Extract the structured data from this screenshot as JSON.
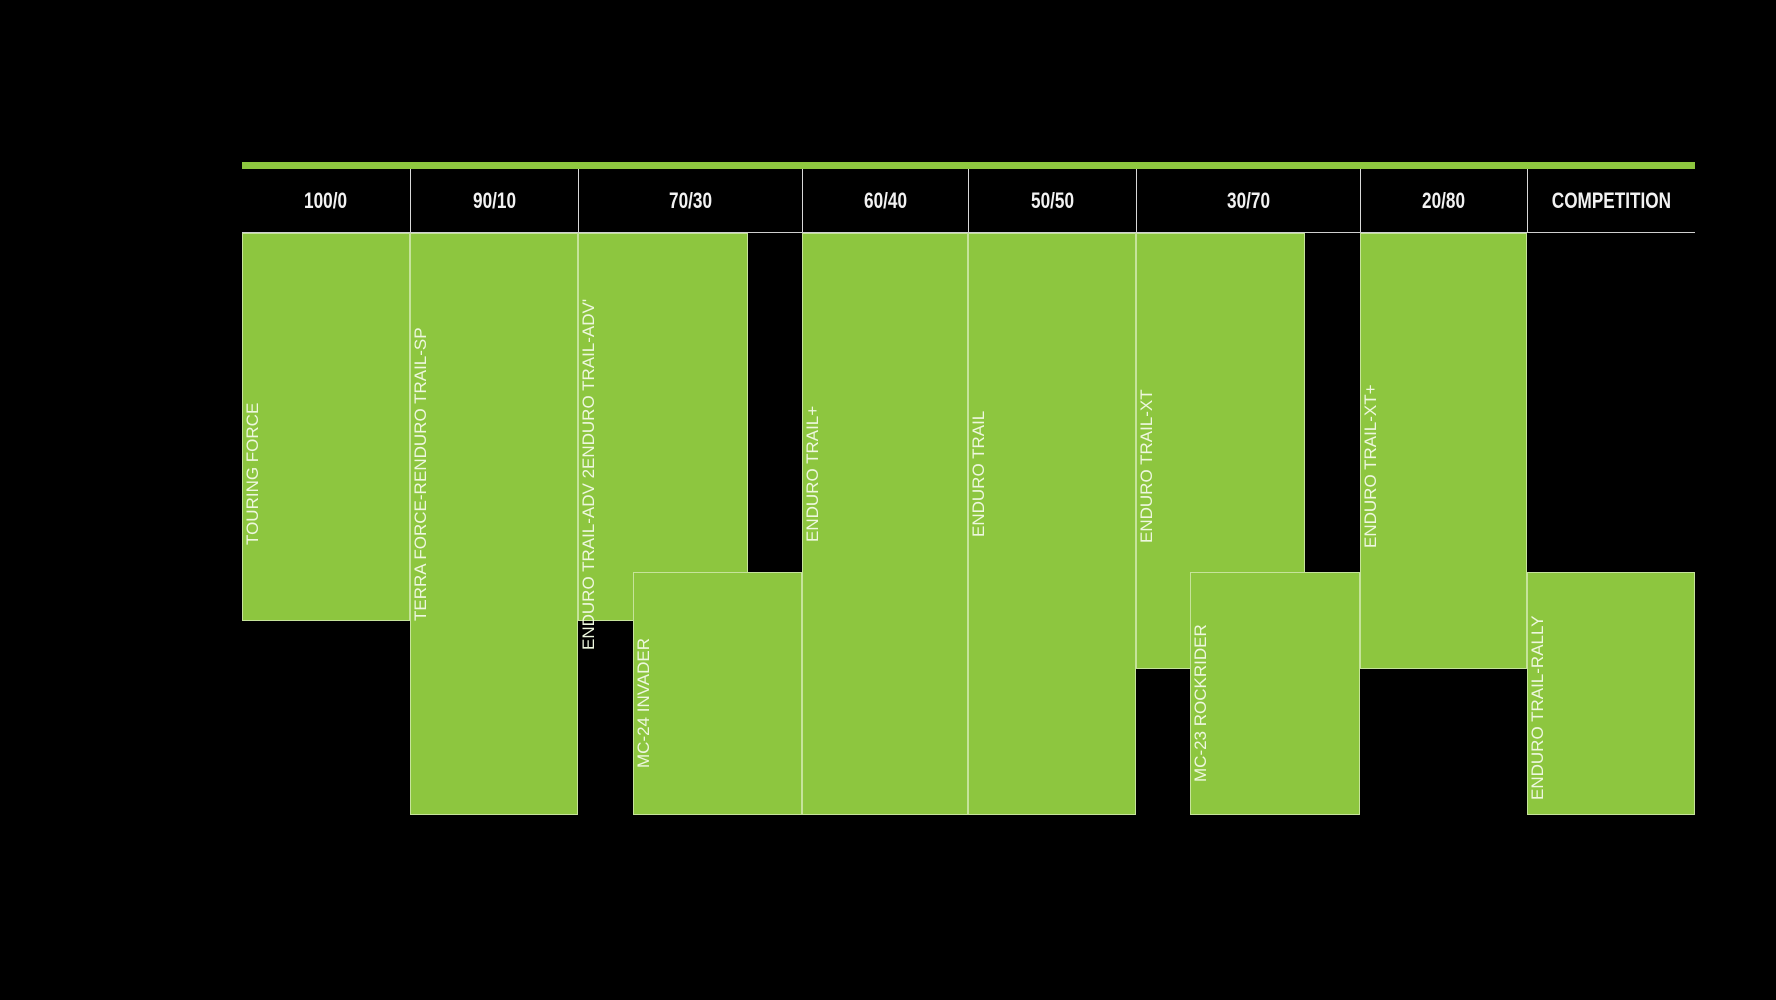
{
  "headers": [
    "100/0",
    "90/10",
    "70/30",
    "60/40",
    "50/50",
    "30/70",
    "20/80",
    "COMPETITION"
  ],
  "blocks": [
    {
      "lines": [
        "TOURING FORCE"
      ]
    },
    {
      "lines": [
        "TERRA FORCE-R",
        "ENDURO TRAIL-SP"
      ]
    },
    {
      "lines": [
        "ENDURO TRAIL-ADV 2",
        "ENDURO TRAIL-ADV'"
      ]
    },
    {
      "lines": [
        "MC-24 INVADER"
      ]
    },
    {
      "lines": [
        "ENDURO TRAIL+"
      ]
    },
    {
      "lines": [
        "ENDURO TRAIL"
      ]
    },
    {
      "lines": [
        "ENDURO TRAIL-XT"
      ]
    },
    {
      "lines": [
        "MC-23 ROCKRIDER"
      ]
    },
    {
      "lines": [
        "ENDURO TRAIL-XT+"
      ]
    },
    {
      "lines": [
        "ENDURO TRAIL-RALLY"
      ]
    }
  ],
  "colors": {
    "accent": "#8dc63f",
    "background": "#000000"
  }
}
